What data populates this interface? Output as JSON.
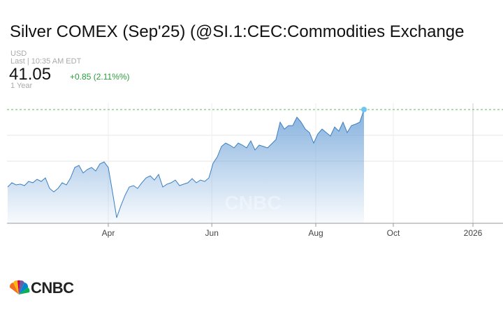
{
  "chart_data": {
    "type": "area",
    "title": "Silver COMEX (Sep'25) (@SI.1:CEC:Commodities Exchange",
    "currency": "USD",
    "last_update": "Last | 10:35 AM EDT",
    "price": "41.05",
    "change": "+0.85 (2.11%%)",
    "range": "1 Year",
    "watermark": "CNBC",
    "logo": "CNBC",
    "color": "#3a7fc0",
    "values": [
      32.85,
      33.3,
      33.07,
      33.15,
      33.0,
      33.44,
      33.3,
      33.66,
      33.44,
      33.81,
      32.7,
      32.33,
      32.7,
      33.3,
      33.07,
      33.81,
      34.92,
      35.14,
      34.33,
      34.7,
      34.92,
      34.55,
      35.29,
      35.51,
      34.92,
      32.33,
      29.6,
      30.86,
      31.97,
      32.85,
      33.0,
      32.7,
      33.3,
      33.81,
      34.03,
      33.59,
      34.18,
      32.85,
      33.15,
      33.3,
      33.59,
      33.0,
      33.15,
      33.3,
      33.74,
      33.3,
      33.59,
      33.44,
      33.81,
      35.36,
      36.03,
      37.14,
      37.5,
      37.28,
      36.99,
      37.5,
      37.28,
      36.99,
      37.73,
      36.77,
      37.28,
      37.14,
      36.99,
      37.43,
      37.87,
      39.72,
      38.98,
      39.35,
      39.35,
      40.24,
      39.72,
      38.98,
      38.61,
      37.5,
      38.47,
      38.98,
      38.61,
      38.24,
      39.2,
      38.76,
      39.72,
      38.61,
      39.35,
      39.5,
      39.72,
      41.05
    ],
    "xlim": [
      0,
      118
    ],
    "xticks": [
      {
        "value": 24,
        "label": "Apr"
      },
      {
        "value": 48.7,
        "label": "Jun"
      },
      {
        "value": 73.5,
        "label": "Aug"
      },
      {
        "value": 92,
        "label": "Oct"
      },
      {
        "value": 111,
        "label": "2026"
      }
    ],
    "ylim": [
      29.01,
      41.71
    ],
    "ygrid": [
      35.58,
      38.32
    ]
  }
}
